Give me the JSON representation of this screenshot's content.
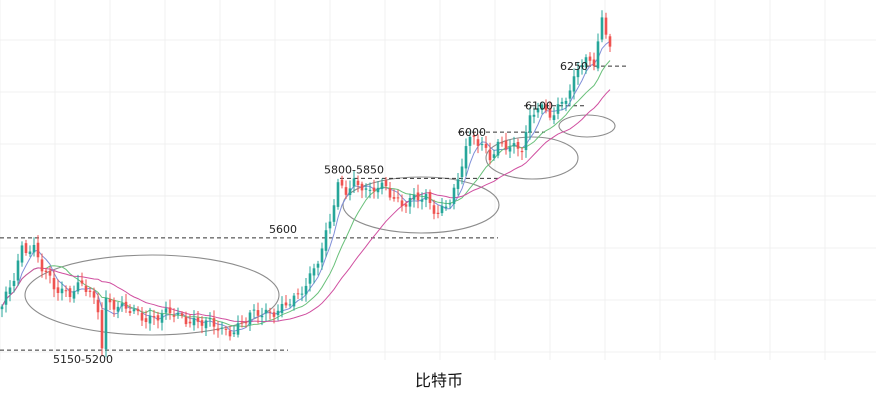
{
  "chart_data": {
    "type": "candlestick",
    "title": "比特币",
    "grid": true,
    "colors": {
      "up": "#26a69a",
      "down": "#ef5350",
      "ma_short": "#7f8fd8",
      "ma_mid": "#69c07a",
      "ma_long": "#d04fa0",
      "level": "#333333",
      "ellipse": "#8c8c8c"
    },
    "levels": [
      {
        "value": 5175,
        "label": "5150-5200"
      },
      {
        "value": 5600,
        "label": "5600"
      },
      {
        "value": 5825,
        "label": "5800-5850"
      },
      {
        "value": 6000,
        "label": "6000"
      },
      {
        "value": 6100,
        "label": "6100"
      },
      {
        "value": 6250,
        "label": "6250"
      }
    ],
    "ylim": [
      5100,
      6500
    ],
    "waypoints": [
      [
        0,
        5330
      ],
      [
        3,
        5450
      ],
      [
        5,
        5570
      ],
      [
        8,
        5560
      ],
      [
        10,
        5480
      ],
      [
        13,
        5410
      ],
      [
        17,
        5400
      ],
      [
        20,
        5420
      ],
      [
        22,
        5380
      ],
      [
        24,
        5330
      ],
      [
        25,
        5200
      ],
      [
        26,
        5370
      ],
      [
        30,
        5330
      ],
      [
        36,
        5300
      ],
      [
        42,
        5310
      ],
      [
        48,
        5290
      ],
      [
        52,
        5270
      ],
      [
        55,
        5250
      ],
      [
        58,
        5255
      ],
      [
        62,
        5300
      ],
      [
        66,
        5320
      ],
      [
        70,
        5335
      ],
      [
        74,
        5370
      ],
      [
        77,
        5460
      ],
      [
        80,
        5560
      ],
      [
        82,
        5660
      ],
      [
        84,
        5790
      ],
      [
        86,
        5780
      ],
      [
        88,
        5820
      ],
      [
        90,
        5800
      ],
      [
        92,
        5760
      ],
      [
        94,
        5790
      ],
      [
        96,
        5790
      ],
      [
        98,
        5760
      ],
      [
        100,
        5730
      ],
      [
        103,
        5740
      ],
      [
        106,
        5750
      ],
      [
        109,
        5700
      ],
      [
        112,
        5740
      ],
      [
        114,
        5800
      ],
      [
        116,
        5950
      ],
      [
        118,
        5990
      ],
      [
        120,
        5960
      ],
      [
        122,
        5900
      ],
      [
        124,
        5940
      ],
      [
        128,
        5950
      ],
      [
        130,
        5950
      ],
      [
        132,
        6050
      ],
      [
        134,
        6090
      ],
      [
        136,
        6070
      ],
      [
        138,
        6070
      ],
      [
        140,
        6130
      ],
      [
        142,
        6150
      ],
      [
        144,
        6240
      ],
      [
        146,
        6260
      ],
      [
        148,
        6270
      ],
      [
        150,
        6430
      ],
      [
        152,
        6340
      ]
    ]
  }
}
